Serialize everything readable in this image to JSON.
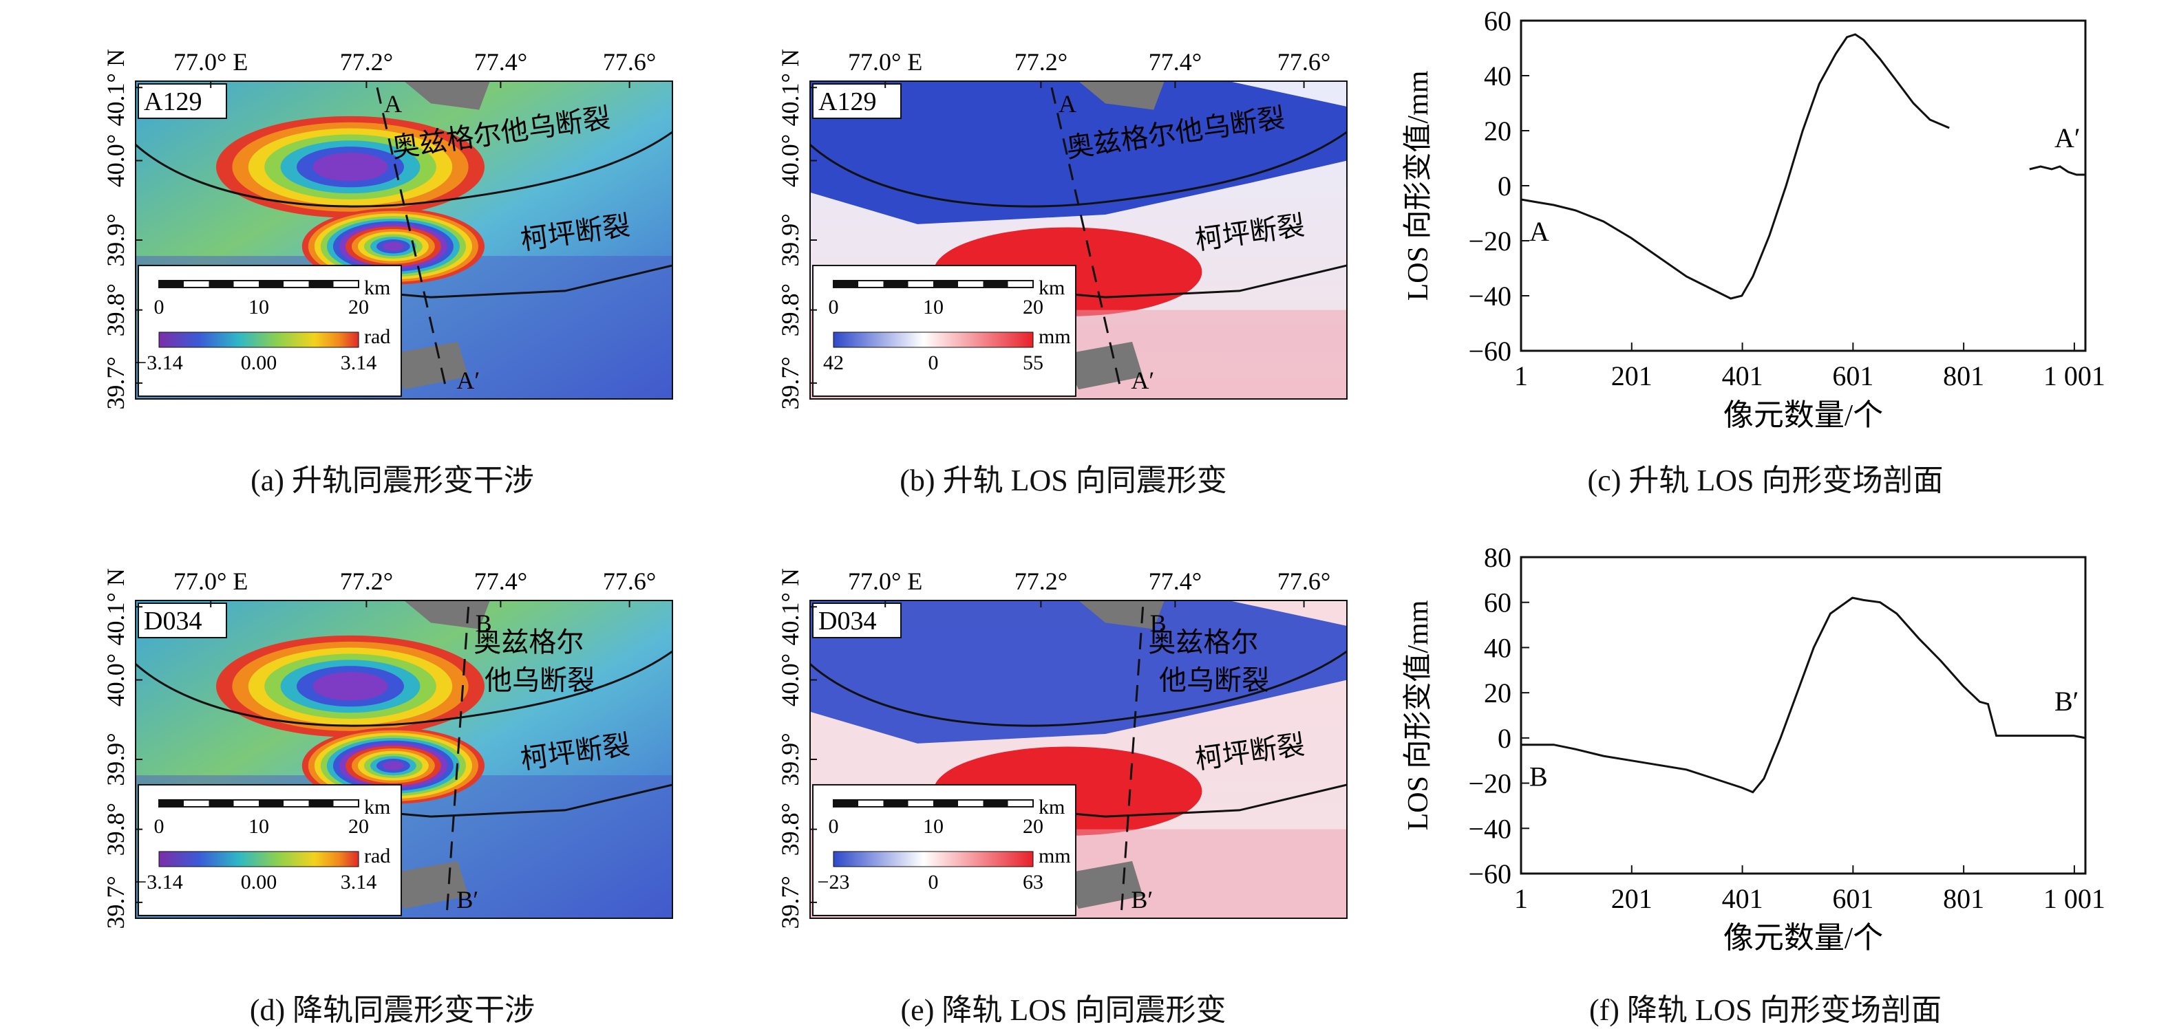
{
  "panels": {
    "a": {
      "caption": "(a) 升轨同震形变干涉",
      "label": "A129",
      "ticks_x": [
        "77.0° E",
        "77.2°",
        "77.4°",
        "77.6°"
      ],
      "ticks_y": [
        "40.1° N",
        "40.0°",
        "39.9°",
        "39.8°",
        "39.7°"
      ],
      "profile_start": "A",
      "profile_end": "A′",
      "fault1": "奥兹格尔他乌断裂",
      "fault2": "柯坪断裂",
      "scale_labels": [
        "0",
        "10",
        "20"
      ],
      "scale_unit": "km",
      "cbar_labels": [
        "−3.14",
        "0.00",
        "3.14"
      ],
      "cbar_unit": "rad"
    },
    "b": {
      "caption": "(b) 升轨 LOS 向同震形变",
      "label": "A129",
      "ticks_x": [
        "77.0° E",
        "77.2°",
        "77.4°",
        "77.6°"
      ],
      "ticks_y": [
        "40.1° N",
        "40.0°",
        "39.9°",
        "39.8°",
        "39.7°"
      ],
      "profile_start": "A",
      "profile_end": "A′",
      "fault1": "奥兹格尔他乌断裂",
      "fault2": "柯坪断裂",
      "scale_labels": [
        "0",
        "10",
        "20"
      ],
      "scale_unit": "km",
      "cbar_labels": [
        "42",
        "0",
        "55"
      ],
      "cbar_unit": "mm"
    },
    "d": {
      "caption": "(d) 降轨同震形变干涉",
      "label": "D034",
      "ticks_x": [
        "77.0° E",
        "77.2°",
        "77.4°",
        "77.6°"
      ],
      "ticks_y": [
        "40.1° N",
        "40.0°",
        "39.9°",
        "39.8°",
        "39.7°"
      ],
      "profile_start": "B",
      "profile_end": "B′",
      "fault1a": "奥兹格尔",
      "fault1b": "他乌断裂",
      "fault2": "柯坪断裂",
      "scale_labels": [
        "0",
        "10",
        "20"
      ],
      "scale_unit": "km",
      "cbar_labels": [
        "−3.14",
        "0.00",
        "3.14"
      ],
      "cbar_unit": "rad"
    },
    "e": {
      "caption": "(e) 降轨 LOS 向同震形变",
      "label": "D034",
      "ticks_x": [
        "77.0° E",
        "77.2°",
        "77.4°",
        "77.6°"
      ],
      "ticks_y": [
        "40.1° N",
        "40.0°",
        "39.9°",
        "39.8°",
        "39.7°"
      ],
      "profile_start": "B",
      "profile_end": "B′",
      "fault1a": "奥兹格尔",
      "fault1b": "他乌断裂",
      "fault2": "柯坪断裂",
      "scale_labels": [
        "0",
        "10",
        "20"
      ],
      "scale_unit": "km",
      "cbar_labels": [
        "−23",
        "0",
        "63"
      ],
      "cbar_unit": "mm"
    }
  },
  "chart_data": [
    {
      "type": "line",
      "caption": "(c) 升轨 LOS 向形变场剖面",
      "ylabel": "LOS 向形变值/mm",
      "xlabel": "像元数量/个",
      "ylim": [
        -60,
        60
      ],
      "xlim": [
        1,
        1021
      ],
      "x_ticks": [
        "1",
        "201",
        "401",
        "601",
        "801",
        "1 001"
      ],
      "y_ticks": [
        "60",
        "40",
        "20",
        "0",
        "−20",
        "−40",
        "−60"
      ],
      "start_label": "A",
      "end_label": "A′",
      "series": [
        {
          "x": [
            1,
            30,
            60,
            100,
            150,
            200,
            250,
            300,
            330,
            360,
            380,
            400,
            420,
            450,
            480,
            510,
            540,
            570,
            590,
            605,
            620,
            650,
            680,
            710,
            740,
            775
          ],
          "y": [
            -5,
            -6,
            -7,
            -9,
            -13,
            -19,
            -26,
            -33,
            -36,
            -39,
            -41,
            -40,
            -33,
            -18,
            0,
            20,
            37,
            48,
            54,
            55,
            53,
            46,
            38,
            30,
            24,
            21
          ]
        },
        {
          "x": [
            920,
            940,
            960,
            975,
            990,
            1005,
            1021
          ],
          "y": [
            6,
            7,
            6,
            7,
            5,
            4,
            4
          ]
        }
      ]
    },
    {
      "type": "line",
      "caption": "(f) 降轨 LOS 向形变场剖面",
      "ylabel": "LOS 向形变值/mm",
      "xlabel": "像元数量/个",
      "ylim": [
        -60,
        80
      ],
      "xlim": [
        1,
        1021
      ],
      "x_ticks": [
        "1",
        "201",
        "401",
        "601",
        "801",
        "1 001"
      ],
      "y_ticks": [
        "80",
        "60",
        "40",
        "20",
        "0",
        "−20",
        "−40",
        "−60"
      ],
      "start_label": "B",
      "end_label": "B′",
      "series": [
        {
          "x": [
            1,
            60,
            100,
            150,
            200,
            250,
            300,
            350,
            400,
            420,
            440,
            470,
            500,
            530,
            560,
            600,
            620,
            650,
            680,
            720,
            760,
            800,
            830,
            845,
            860,
            900,
            950,
            1000,
            1021
          ],
          "y": [
            -3,
            -3,
            -5,
            -8,
            -10,
            -12,
            -14,
            -18,
            -22,
            -24,
            -18,
            0,
            20,
            40,
            55,
            62,
            61,
            60,
            55,
            44,
            34,
            23,
            16,
            15,
            1,
            1,
            1,
            1,
            0
          ]
        }
      ]
    }
  ]
}
